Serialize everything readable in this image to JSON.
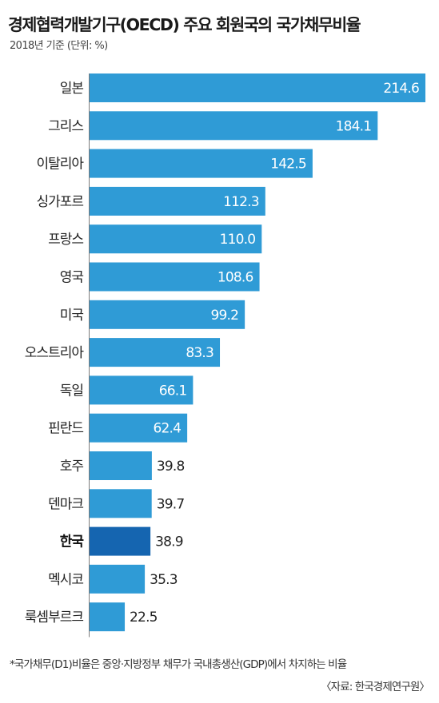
{
  "chart_data": {
    "type": "bar",
    "orientation": "horizontal",
    "title": "경제협력개발기구(OECD) 주요 회원국의 국가채무비율",
    "subtitle": "2018년 기준 (단위: %)",
    "categories": [
      "일본",
      "그리스",
      "이탈리아",
      "싱가포르",
      "프랑스",
      "영국",
      "미국",
      "오스트리아",
      "독일",
      "핀란드",
      "호주",
      "덴마크",
      "한국",
      "멕시코",
      "룩셈부르크"
    ],
    "values": [
      214.6,
      184.1,
      142.5,
      112.3,
      110.0,
      108.6,
      99.2,
      83.3,
      66.1,
      62.4,
      39.8,
      39.7,
      38.9,
      35.3,
      22.5
    ],
    "value_labels": [
      "214.6",
      "184.1",
      "142.5",
      "112.3",
      "110.0",
      "108.6",
      "99.2",
      "83.3",
      "66.1",
      "62.4",
      "39.8",
      "39.7",
      "38.9",
      "35.3",
      "22.5"
    ],
    "highlight_category": "한국",
    "xlim": [
      0,
      214.6
    ],
    "grid": false,
    "legend": "none",
    "colors": {
      "bar": "#2f9bd6",
      "highlight_bar": "#1565b0",
      "label_inside": "#ffffff",
      "label_outside": "#222222",
      "divider": "#7a7a7a"
    }
  },
  "footnote": "*국가채무(D1)비율은 중앙·지방정부 채무가 국내총생산(GDP)에서 차지하는 비율",
  "source": "〈자료: 한국경제연구원〉"
}
